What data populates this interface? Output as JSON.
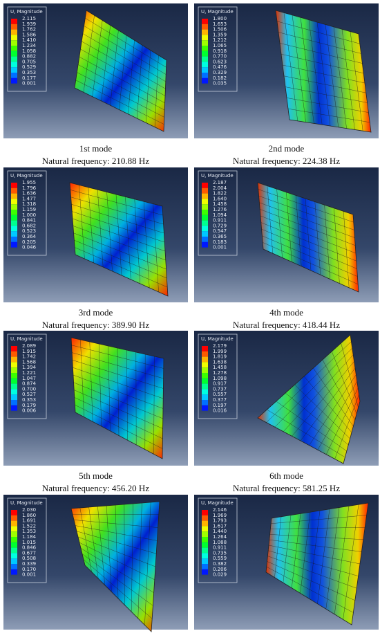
{
  "panels": [
    {
      "legend_title": "U, Magnitude",
      "legend_values": [
        "2.115",
        "1.939",
        "1.762",
        "1.586",
        "1.410",
        "1.234",
        "1.058",
        "0.882",
        "0.705",
        "0.529",
        "0.353",
        "0.177",
        "0.001"
      ],
      "caption": "1st mode",
      "frequency": "Natural frequency: 210.88 Hz"
    },
    {
      "legend_title": "U, Magnitude",
      "legend_values": [
        "1.800",
        "1.653",
        "1.506",
        "1.359",
        "1.212",
        "1.065",
        "0.918",
        "0.770",
        "0.623",
        "0.476",
        "0.329",
        "0.182",
        "0.035"
      ],
      "caption": "2nd mode",
      "frequency": "Natural frequency: 224.38 Hz"
    },
    {
      "legend_title": "U, Magnitude",
      "legend_values": [
        "1.955",
        "1.796",
        "1.636",
        "1.477",
        "1.318",
        "1.159",
        "1.000",
        "0.841",
        "0.682",
        "0.523",
        "0.364",
        "0.205",
        "0.046"
      ],
      "caption": "3rd mode",
      "frequency": "Natural frequency: 389.90 Hz"
    },
    {
      "legend_title": "U, Magnitude",
      "legend_values": [
        "2.187",
        "2.004",
        "1.822",
        "1.640",
        "1.458",
        "1.276",
        "1.094",
        "0.911",
        "0.729",
        "0.547",
        "0.365",
        "0.183",
        "0.001"
      ],
      "caption": "4th mode",
      "frequency": "Natural frequency: 418.44 Hz"
    },
    {
      "legend_title": "U, Magnitude",
      "legend_values": [
        "2.089",
        "1.915",
        "1.742",
        "1.568",
        "1.394",
        "1.221",
        "1.047",
        "0.874",
        "0.700",
        "0.527",
        "0.353",
        "0.179",
        "0.006"
      ],
      "caption": "5th mode",
      "frequency": "Natural frequency: 456.20 Hz"
    },
    {
      "legend_title": "U, Magnitude",
      "legend_values": [
        "2.179",
        "1.999",
        "1.819",
        "1.638",
        "1.458",
        "1.278",
        "1.098",
        "0.917",
        "0.737",
        "0.557",
        "0.377",
        "0.197",
        "0.016"
      ],
      "caption": "6th mode",
      "frequency": "Natural frequency: 581.25 Hz"
    },
    {
      "legend_title": "U, Magnitude",
      "legend_values": [
        "2.030",
        "1.860",
        "1.691",
        "1.522",
        "1.353",
        "1.184",
        "1.015",
        "0.846",
        "0.677",
        "0.508",
        "0.339",
        "0.170",
        "0.001"
      ]
    },
    {
      "legend_title": "U, Magnitude",
      "legend_values": [
        "2.146",
        "1.969",
        "1.793",
        "1.617",
        "1.440",
        "1.264",
        "1.088",
        "0.911",
        "0.735",
        "0.559",
        "0.382",
        "0.206",
        "0.029"
      ]
    }
  ]
}
